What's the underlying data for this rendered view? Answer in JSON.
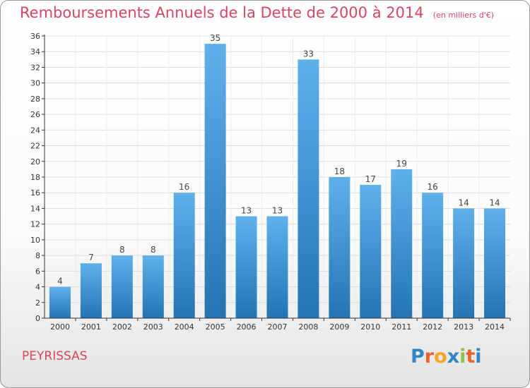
{
  "title": "Remboursements Annuels de la Dette de 2000 à 2014",
  "unit_note": "(en milliers d'€)",
  "commune": "PEYRISSAS",
  "logo": {
    "letters": [
      "P",
      "r",
      "o",
      "x",
      "i",
      "t",
      "i"
    ],
    "colors": [
      "#2f86c9",
      "#e8652c",
      "#f2a51e",
      "#2f86c9",
      "#8bc34a",
      "#e8652c",
      "#2f86c9"
    ]
  },
  "colors": {
    "title": "#d9455f",
    "bar_top": "#5fb1ec",
    "bar_bottom": "#2374b3",
    "grid": "#dcdcdc",
    "axis": "#333333"
  },
  "chart_data": {
    "type": "bar",
    "categories": [
      "2000",
      "2001",
      "2002",
      "2003",
      "2004",
      "2005",
      "2006",
      "2007",
      "2008",
      "2009",
      "2010",
      "2011",
      "2012",
      "2013",
      "2014"
    ],
    "values": [
      4,
      7,
      8,
      8,
      16,
      35,
      13,
      13,
      33,
      18,
      17,
      19,
      16,
      14,
      14
    ],
    "ylim": [
      0,
      36
    ],
    "ytick_step": 2,
    "grid": true,
    "show_data_labels": true
  }
}
